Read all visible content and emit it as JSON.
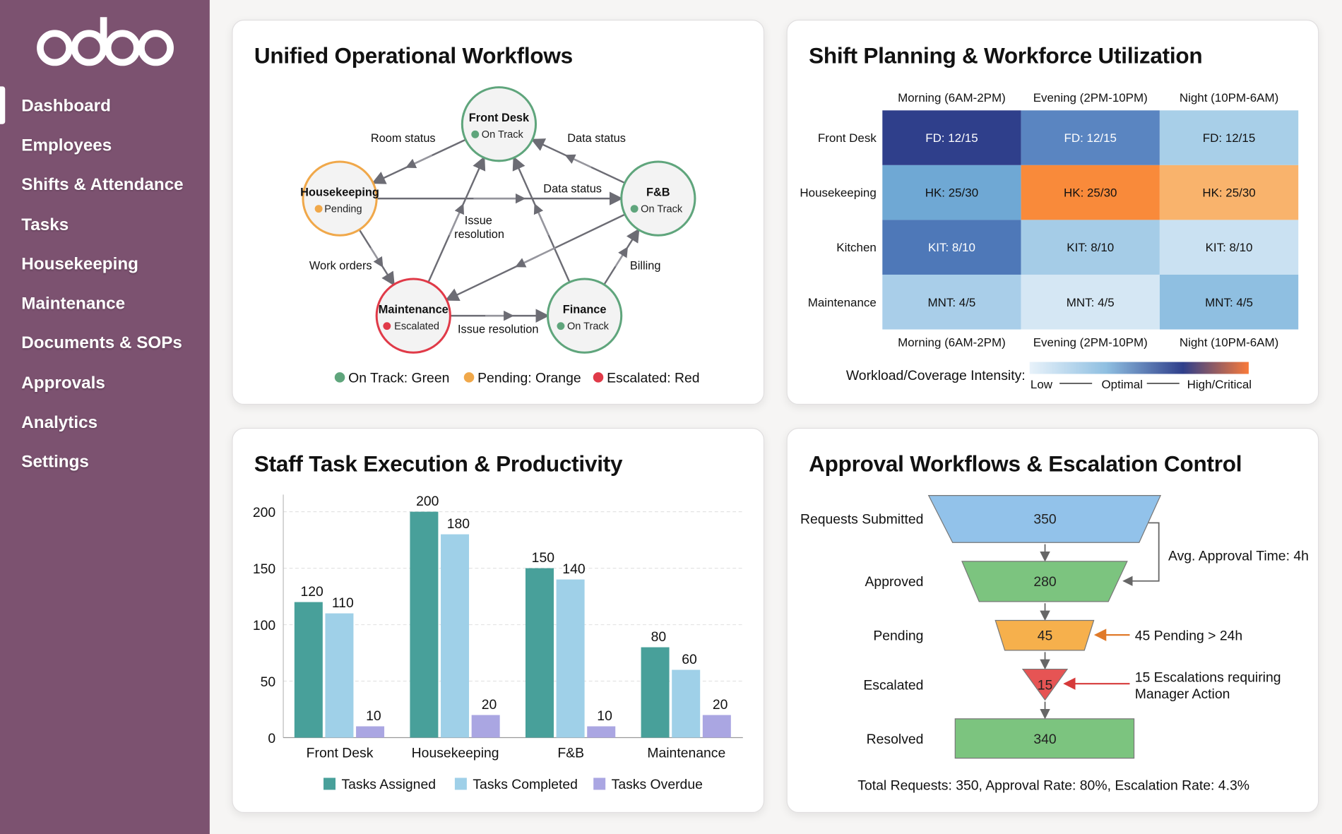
{
  "sidebar": {
    "logo": "odoo",
    "items": [
      {
        "label": "Dashboard",
        "active": true
      },
      {
        "label": "Employees"
      },
      {
        "label": "Shifts & Attendance"
      },
      {
        "label": "Tasks"
      },
      {
        "label": "Housekeeping"
      },
      {
        "label": "Maintenance"
      },
      {
        "label": "Documents & SOPs"
      },
      {
        "label": "Approvals"
      },
      {
        "label": "Analytics"
      },
      {
        "label": "Settings"
      }
    ]
  },
  "colors": {
    "sidebar": "#7c5270",
    "on_track": "#5fa57c",
    "pending": "#f0a84a",
    "escalated": "#e03a48"
  },
  "workflows": {
    "title": "Unified Operational Workflows",
    "nodes": [
      {
        "name": "Front Desk",
        "status": "On Track"
      },
      {
        "name": "Housekeeping",
        "status": "Pending"
      },
      {
        "name": "F&B",
        "status": "On Track"
      },
      {
        "name": "Maintenance",
        "status": "Escalated"
      },
      {
        "name": "Finance",
        "status": "On Track"
      }
    ],
    "edge_labels": {
      "room_status": "Room status",
      "data_status_1": "Data status",
      "data_status_2": "Data status",
      "issue_resolution_1a": "Issue",
      "issue_resolution_1b": "resolution",
      "work_orders": "Work orders",
      "billing": "Billing",
      "issue_resolution_2": "Issue resolution"
    },
    "legend": [
      "On Track: Green",
      "Pending: Orange",
      "Escalated: Red"
    ]
  },
  "shifts": {
    "title": "Shift Planning & Workforce Utilization",
    "columns": [
      "Morning (6AM-2PM)",
      "Evening (2PM-10PM)",
      "Night (10PM-6AM)"
    ],
    "rows": [
      "Front Desk",
      "Housekeeping",
      "Kitchen",
      "Maintenance"
    ],
    "cells": [
      [
        "FD: 12/15",
        "FD: 12/15",
        "FD: 12/15"
      ],
      [
        "HK: 25/30",
        "HK: 25/30",
        "HK: 25/30"
      ],
      [
        "KIT: 8/10",
        "KIT: 8/10",
        "KIT: 8/10"
      ],
      [
        "MNT: 4/5",
        "MNT: 4/5",
        "MNT: 4/5"
      ]
    ],
    "cell_colors": [
      [
        "#2f3f8b",
        "#5a85c1",
        "#a8cfe8"
      ],
      [
        "#6fa8d4",
        "#f98a3a",
        "#f9b36c"
      ],
      [
        "#4e78b8",
        "#a5cce7",
        "#cae1f2"
      ],
      [
        "#a9cee9",
        "#d5e7f4",
        "#8fbfe1"
      ]
    ],
    "legend_label": "Workload/Coverage Intensity:",
    "legend_low": "Low",
    "legend_mid": "Optimal",
    "legend_high": "High/Critical"
  },
  "tasks": {
    "title": "Staff Task Execution & Productivity"
  },
  "chart_data": {
    "type": "bar",
    "categories": [
      "Front Desk",
      "Housekeeping",
      "F&B",
      "Maintenance"
    ],
    "series": [
      {
        "name": "Tasks Assigned",
        "color": "#48a09a",
        "values": [
          120,
          200,
          150,
          80
        ]
      },
      {
        "name": "Tasks Completed",
        "color": "#9fd0e8",
        "values": [
          110,
          180,
          140,
          60
        ]
      },
      {
        "name": "Tasks Overdue",
        "color": "#aaa6e2",
        "values": [
          10,
          20,
          10,
          20
        ]
      }
    ],
    "yticks": [
      0,
      50,
      100,
      150,
      200
    ],
    "ylim": [
      0,
      200
    ],
    "grid": true,
    "legend": "bottom"
  },
  "approvals": {
    "title": "Approval Workflows & Escalation Control",
    "stages": [
      {
        "label": "Requests Submitted",
        "value": "350",
        "color": "#92c2ea"
      },
      {
        "label": "Approved",
        "value": "280",
        "color": "#7cc47f"
      },
      {
        "label": "Pending",
        "value": "45",
        "color": "#f6b04c"
      },
      {
        "label": "Escalated",
        "value": "15",
        "color": "#e65454"
      },
      {
        "label": "Resolved",
        "value": "340",
        "color": "#7cc47f"
      }
    ],
    "avg_time": "Avg. Approval Time: 4h",
    "pending_note": "45 Pending > 24h",
    "escalation_note_1": "15 Escalations requiring",
    "escalation_note_2": "Manager Action",
    "summary": "Total Requests: 350, Approval Rate: 80%, Escalation Rate: 4.3%"
  }
}
